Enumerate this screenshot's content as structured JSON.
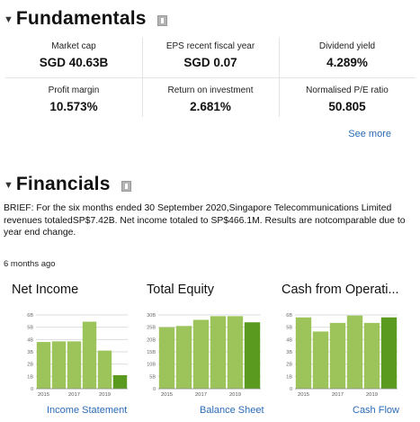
{
  "fundamentals": {
    "title": "Fundamentals",
    "metrics": [
      {
        "label": "Market cap",
        "value": "SGD 40.63B"
      },
      {
        "label": "EPS recent fiscal year",
        "value": "SGD 0.07"
      },
      {
        "label": "Dividend yield",
        "value": "4.289%"
      },
      {
        "label": "Profit margin",
        "value": "10.573%"
      },
      {
        "label": "Return on investment",
        "value": "2.681%"
      },
      {
        "label": "Normalised P/E ratio",
        "value": "50.805"
      }
    ],
    "see_more": "See more"
  },
  "financials": {
    "title": "Financials",
    "brief": "BRIEF: For the six months ended 30 September 2020,Singapore Telecommunications Limited revenues totaledSP$7.42B. Net income totaled to SP$466.1M. Results are notcomparable due to year end change.",
    "time_ago": "6 months ago",
    "cards": [
      {
        "title": "Net Income",
        "link": "Income Statement"
      },
      {
        "title": "Total Equity",
        "link": "Balance Sheet"
      },
      {
        "title": "Cash from Operati...",
        "link": "Cash Flow"
      }
    ]
  },
  "colors": {
    "bar": "#9dc45a",
    "bar_last": "#5a9a1e",
    "link": "#2a6bb7",
    "grid": "#dddddd"
  },
  "chart_data": [
    {
      "type": "bar",
      "title": "Net Income",
      "categories": [
        "2015",
        "2016",
        "2017",
        "2018",
        "2019",
        "2020"
      ],
      "x_tick_labels": [
        "2015",
        "2017",
        "2019"
      ],
      "y_tick_labels": [
        "0",
        "1B",
        "2B",
        "3B",
        "4B",
        "5B",
        "6B"
      ],
      "values": [
        3.8,
        3.85,
        3.85,
        5.45,
        3.1,
        1.1
      ],
      "ylim": [
        0,
        6
      ],
      "grid": true
    },
    {
      "type": "bar",
      "title": "Total Equity",
      "categories": [
        "2015",
        "2016",
        "2017",
        "2018",
        "2019",
        "2020"
      ],
      "x_tick_labels": [
        "2015",
        "2017",
        "2019"
      ],
      "y_tick_labels": [
        "0",
        "5B",
        "10B",
        "15B",
        "20B",
        "25B",
        "30B"
      ],
      "values": [
        25,
        25.5,
        28,
        29.5,
        29.5,
        27
      ],
      "ylim": [
        0,
        30
      ],
      "grid": true
    },
    {
      "type": "bar",
      "title": "Cash from Operati...",
      "categories": [
        "2015",
        "2016",
        "2017",
        "2018",
        "2019",
        "2020"
      ],
      "x_tick_labels": [
        "2015",
        "2017",
        "2019"
      ],
      "y_tick_labels": [
        "0",
        "1B",
        "2B",
        "3B",
        "4B",
        "5B",
        "6B"
      ],
      "values": [
        5.8,
        4.65,
        5.35,
        5.95,
        5.35,
        5.8
      ],
      "ylim": [
        0,
        6
      ],
      "grid": true
    }
  ]
}
